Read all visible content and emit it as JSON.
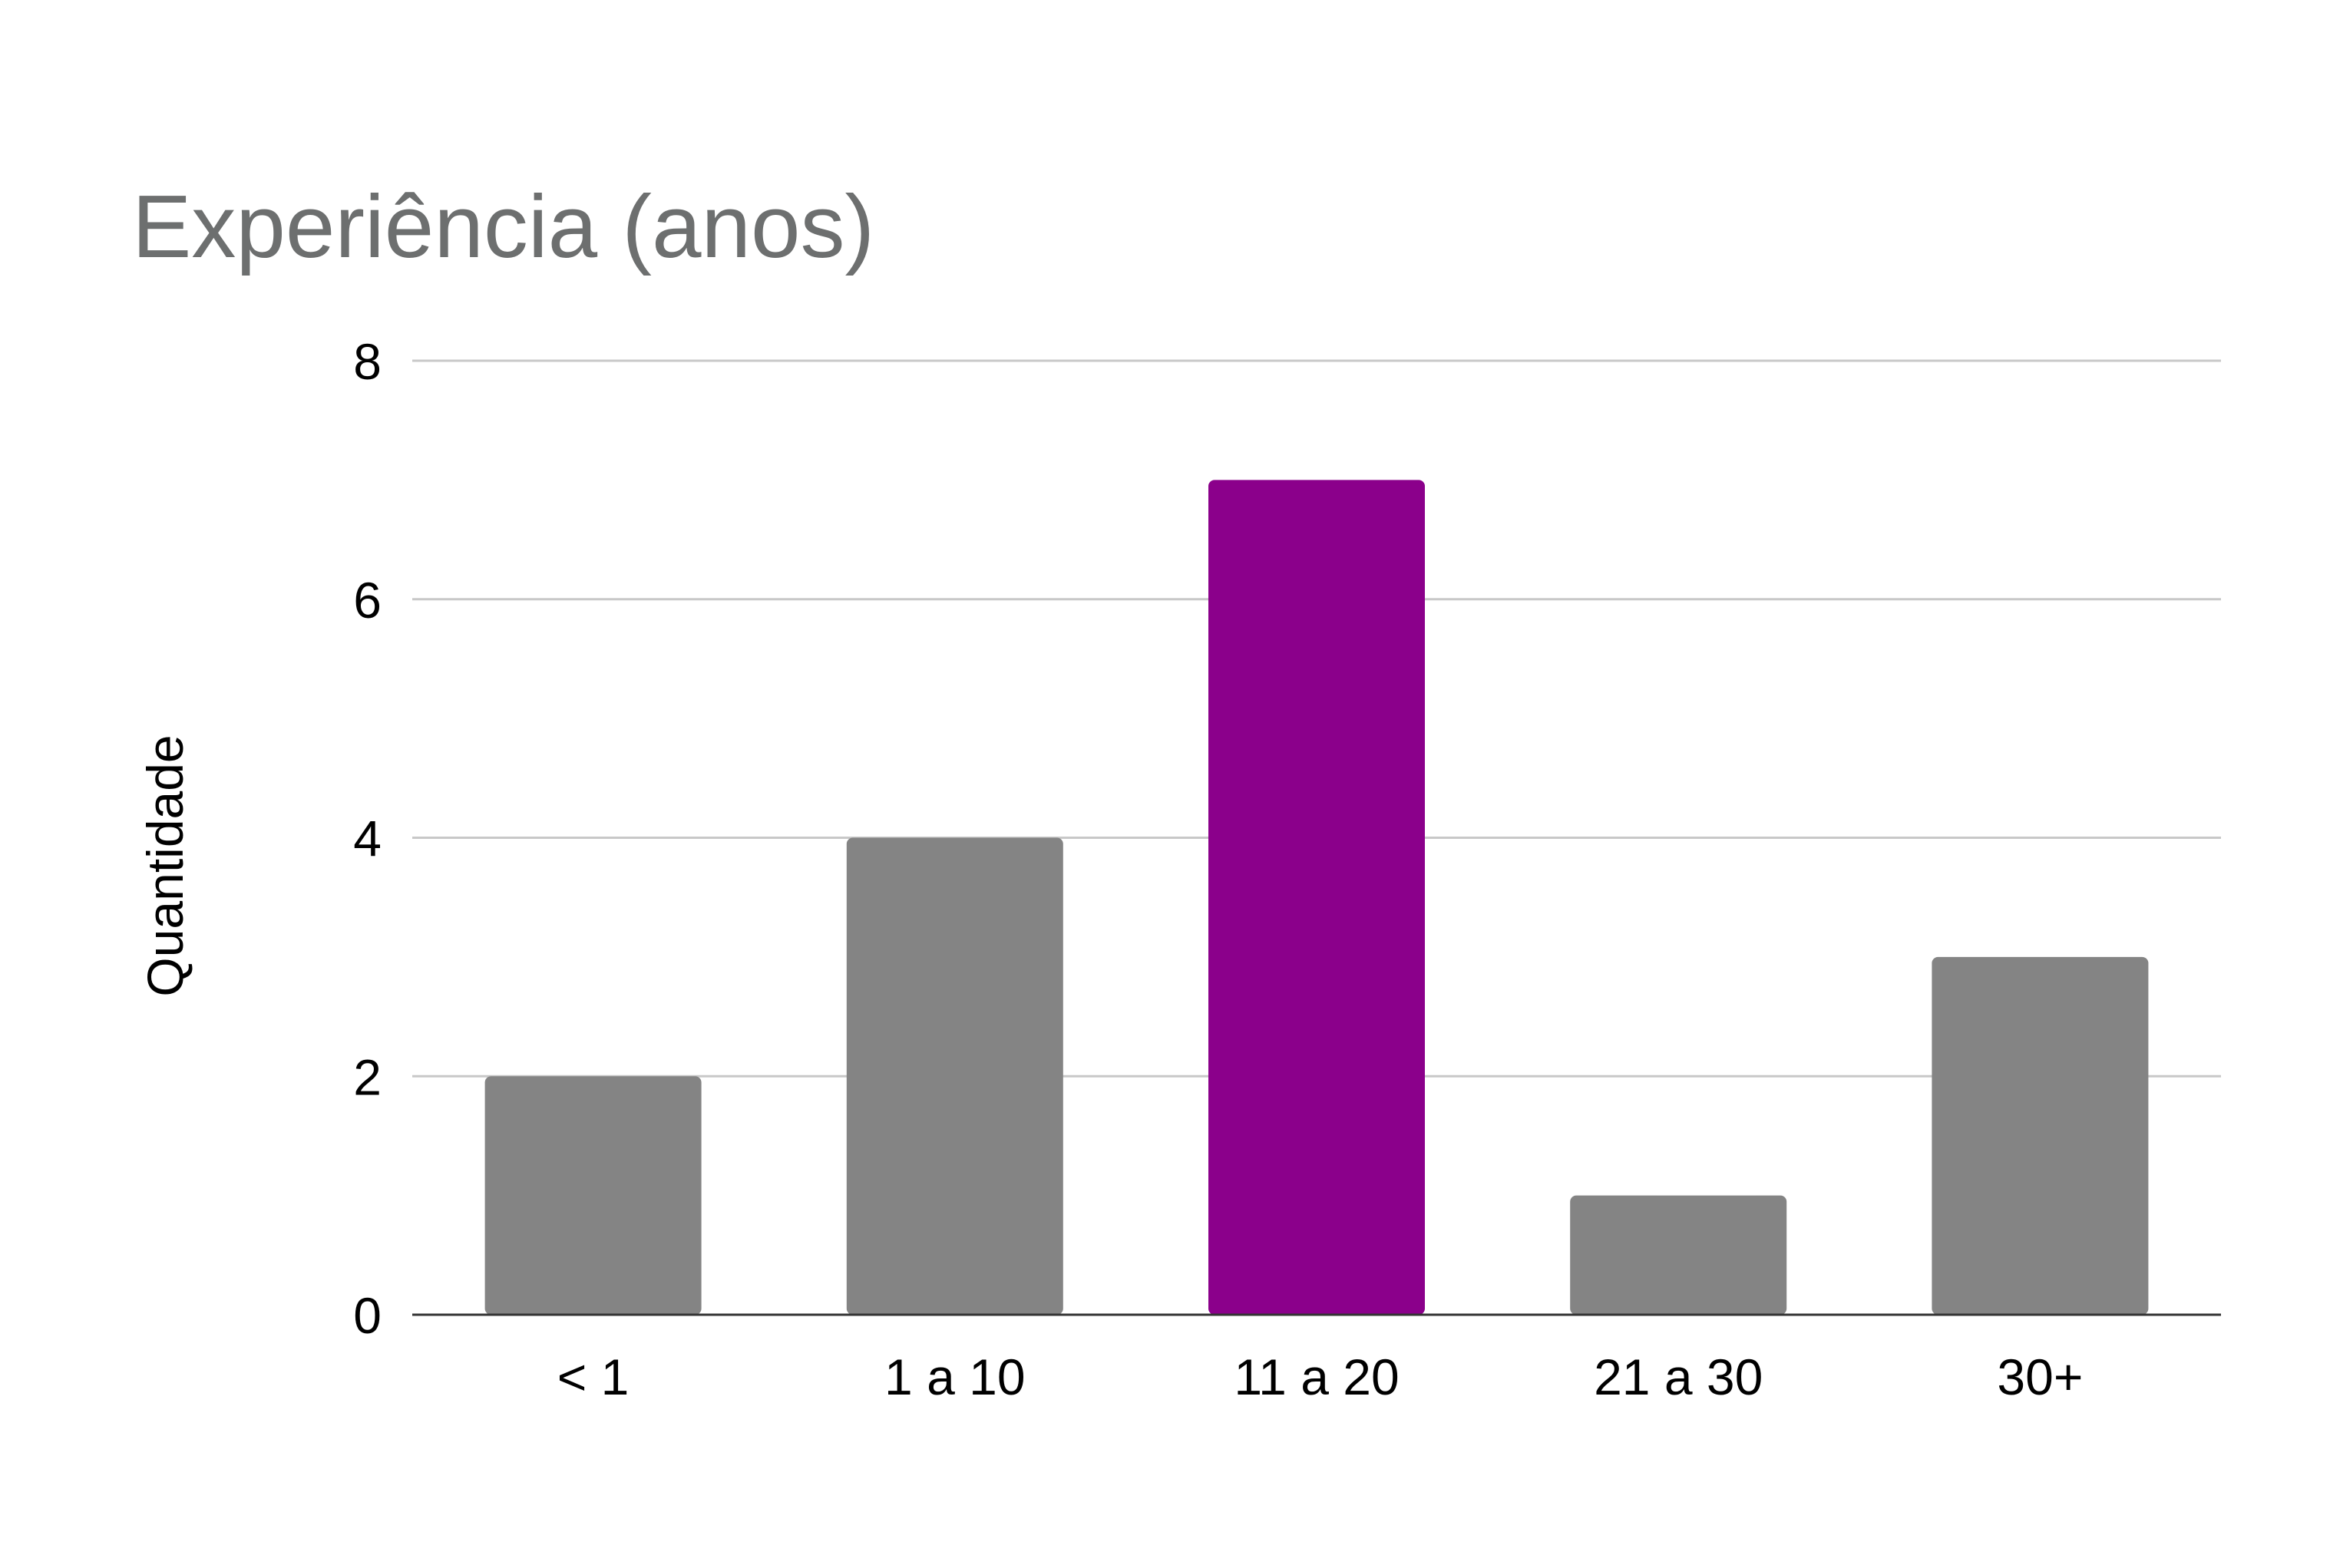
{
  "chart_data": {
    "type": "bar",
    "title": "Experiência (anos)",
    "xlabel": "",
    "ylabel": "Quantidade",
    "categories": [
      "< 1",
      "1 a 10",
      "11 a 20",
      "21 a 30",
      "30+"
    ],
    "values": [
      2,
      4,
      7,
      1,
      3
    ],
    "ylim": [
      0,
      8
    ],
    "yticks": [
      0,
      2,
      4,
      6,
      8
    ],
    "grid": true,
    "legend": "none",
    "colors": {
      "default_bar": "#848484",
      "highlight_bar": "#8b008b",
      "title": "#6d6f6f",
      "gridline": "#c8c8c8",
      "baseline": "#333333"
    },
    "highlight_category": "11 a 20"
  }
}
